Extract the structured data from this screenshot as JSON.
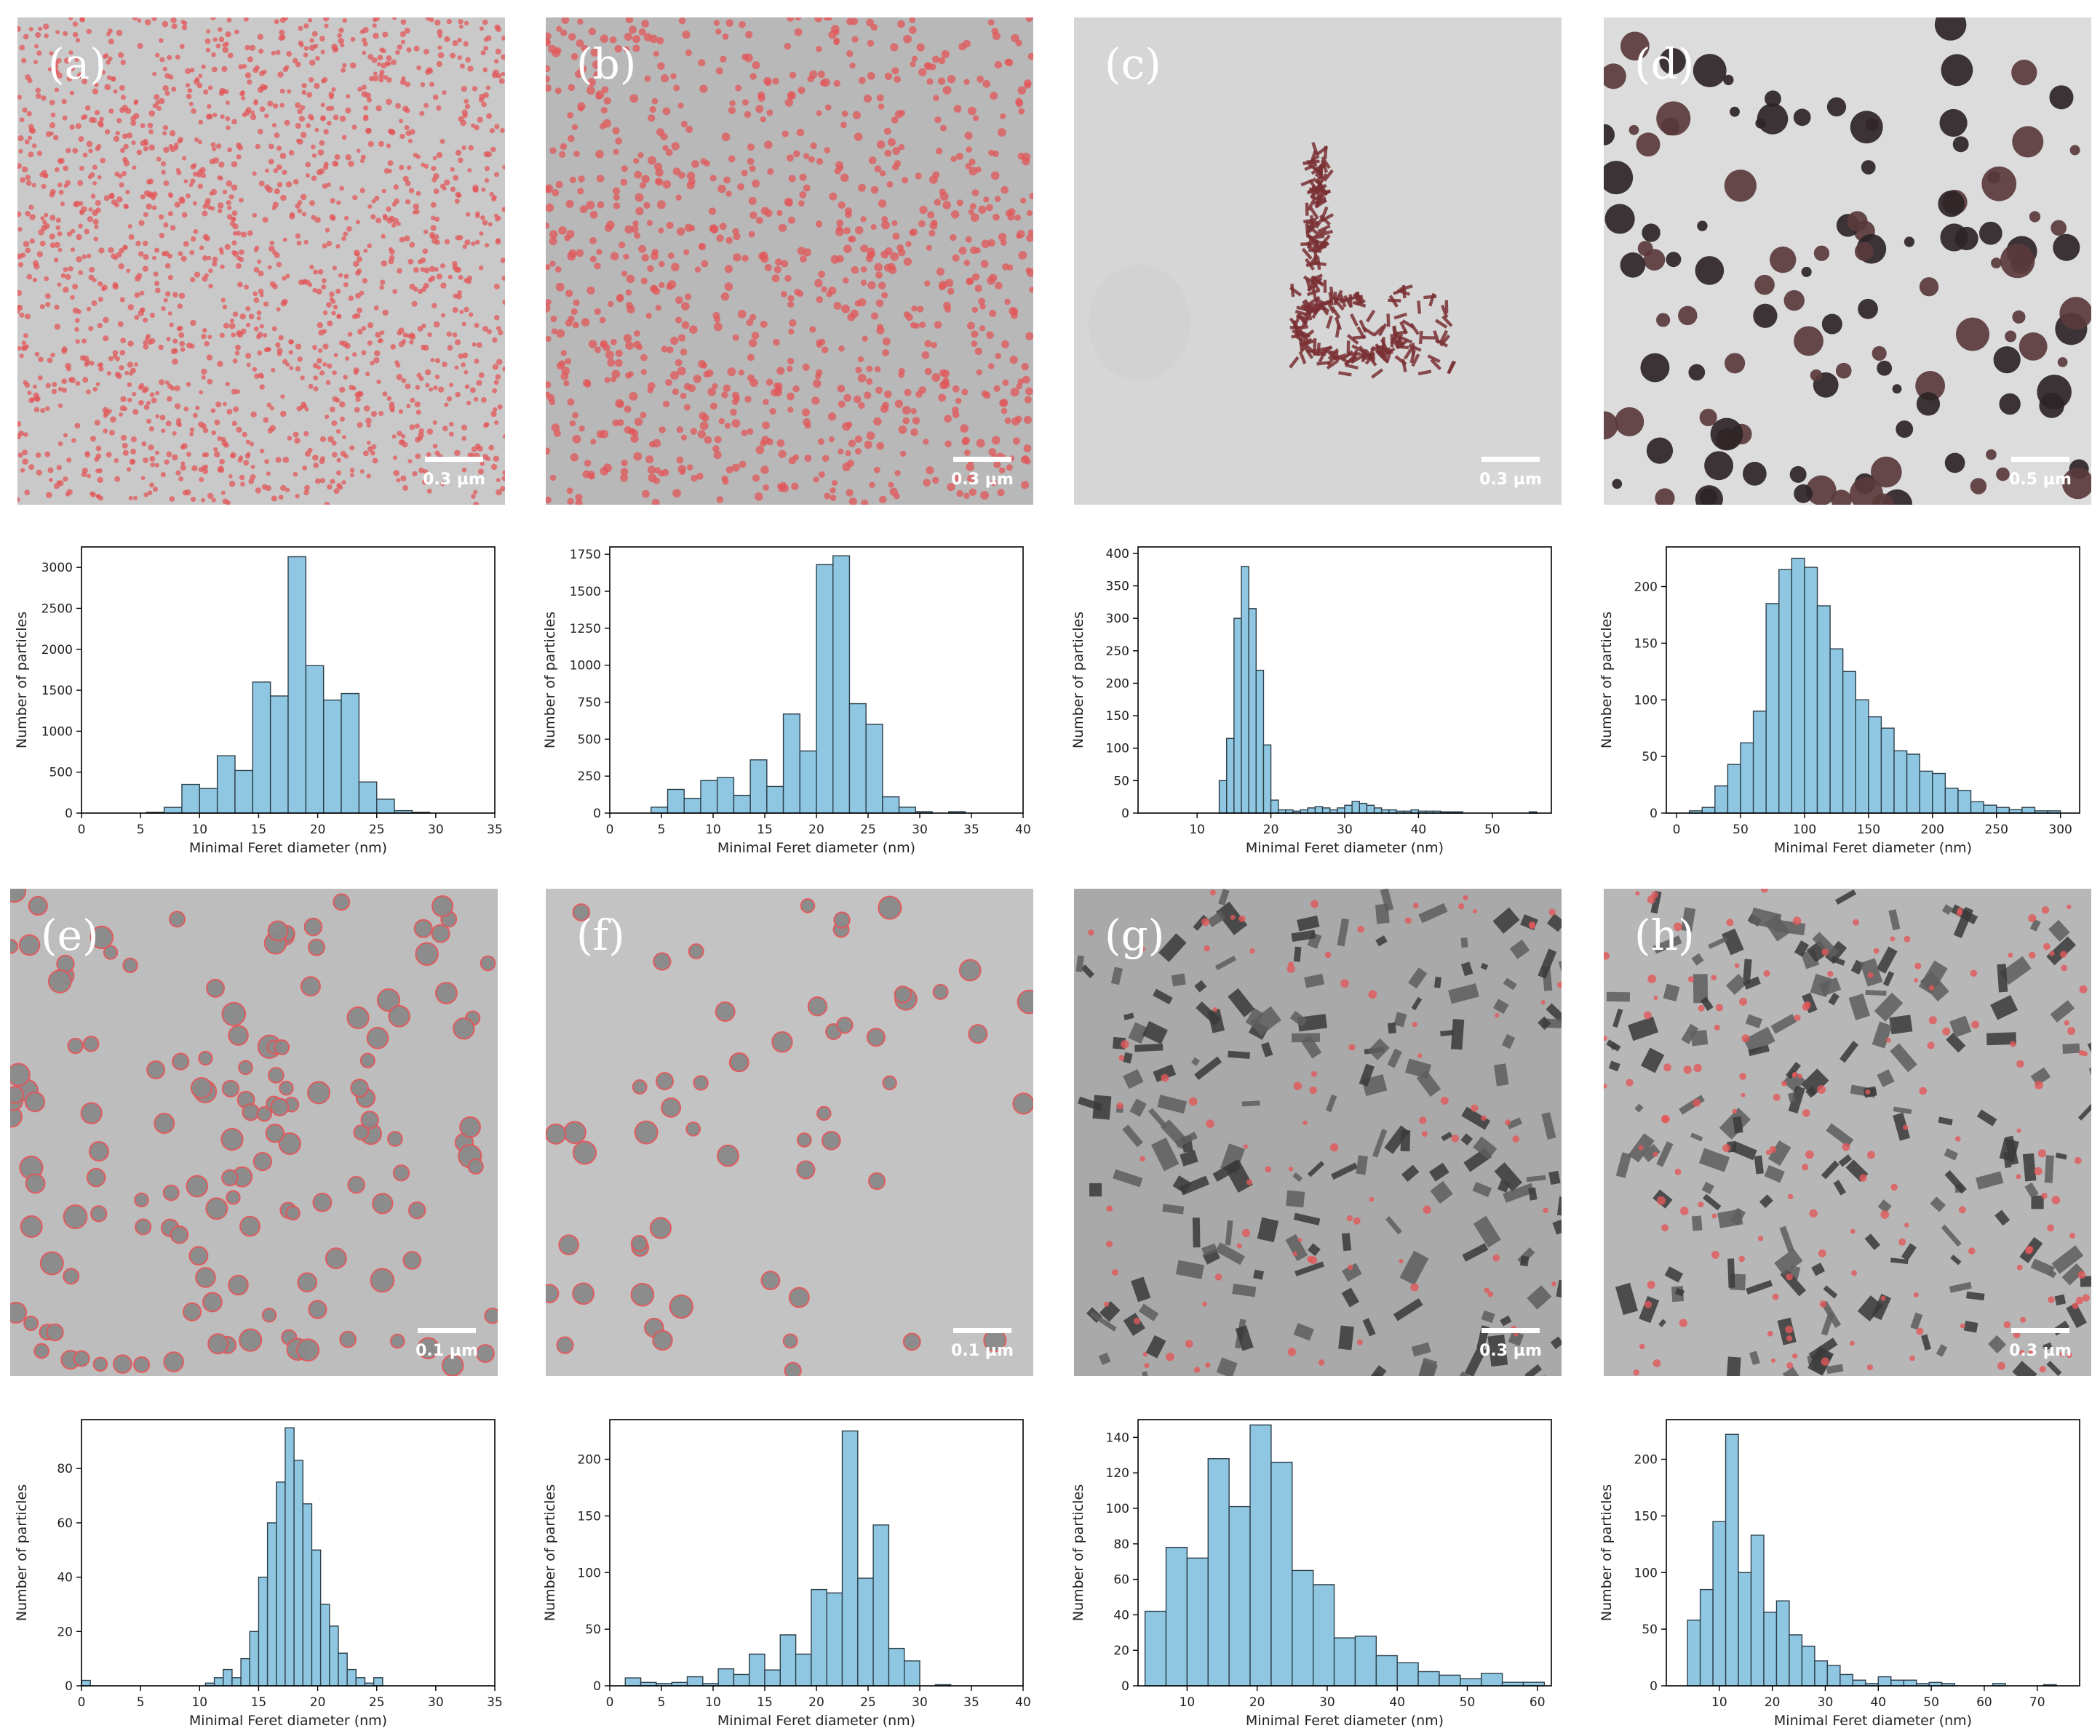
{
  "colors": {
    "bar_fill": "#8fc7e2",
    "bar_edge": "#2d3f4a",
    "overlay": "#e2575a"
  },
  "micrographs": [
    {
      "id": "a",
      "letter": "(a)",
      "scale_label": "0.3 µm",
      "bg": "#c9c9c9",
      "style": "dense-dots"
    },
    {
      "id": "b",
      "letter": "(b)",
      "scale_label": "0.3 µm",
      "bg": "#b8b8b8",
      "style": "dots"
    },
    {
      "id": "c",
      "letter": "(c)",
      "scale_label": "0.3 µm",
      "bg": "#d6d6d6",
      "style": "rods"
    },
    {
      "id": "d",
      "letter": "(d)",
      "scale_label": "0.5 µm",
      "bg": "#dcdcdc",
      "style": "dark-blobs"
    },
    {
      "id": "e",
      "letter": "(e)",
      "scale_label": "0.1 µm",
      "bg": "#bdbdbd",
      "style": "rings"
    },
    {
      "id": "f",
      "letter": "(f)",
      "scale_label": "0.1 µm",
      "bg": "#c3c3c3",
      "style": "rings-few"
    },
    {
      "id": "g",
      "letter": "(g)",
      "scale_label": "0.3 µm",
      "bg": "#a9a9a9",
      "style": "aggregates"
    },
    {
      "id": "h",
      "letter": "(h)",
      "scale_label": "0.3 µm",
      "bg": "#b7b7b7",
      "style": "aggregates-dots"
    }
  ],
  "chart_data": [
    {
      "panel": "a",
      "type": "bar",
      "xlabel": "Minimal Feret diameter (nm)",
      "ylabel": "Number of particles",
      "xlim": [
        0,
        35
      ],
      "xticks": [
        0,
        5,
        10,
        15,
        20,
        25,
        30,
        35
      ],
      "ylim": [
        0,
        3250
      ],
      "yticks": [
        0,
        500,
        1000,
        1500,
        2000,
        2500,
        3000
      ],
      "bin_start": 5.5,
      "bin_width": 1.5,
      "values": [
        10,
        70,
        350,
        300,
        700,
        520,
        1600,
        1430,
        3130,
        1800,
        1380,
        1460,
        380,
        170,
        30,
        10,
        0,
        0
      ]
    },
    {
      "panel": "b",
      "type": "bar",
      "xlabel": "Minimal Feret diameter (nm)",
      "ylabel": "Number of particles",
      "xlim": [
        0,
        40
      ],
      "xticks": [
        0,
        5,
        10,
        15,
        20,
        25,
        30,
        35,
        40
      ],
      "ylim": [
        0,
        1800
      ],
      "yticks": [
        0,
        250,
        500,
        750,
        1000,
        1250,
        1500,
        1750
      ],
      "bin_start": 4,
      "bin_width": 1.6,
      "values": [
        40,
        160,
        100,
        220,
        240,
        120,
        360,
        180,
        670,
        420,
        1680,
        1740,
        740,
        600,
        110,
        40,
        10,
        0,
        10
      ]
    },
    {
      "panel": "c",
      "type": "bar",
      "xlabel": "Minimal Feret diameter (nm)",
      "ylabel": "Number of particles",
      "xlim": [
        2,
        58
      ],
      "xticks": [
        10,
        20,
        30,
        40,
        50
      ],
      "ylim": [
        0,
        410
      ],
      "yticks": [
        0,
        50,
        100,
        150,
        200,
        250,
        300,
        350,
        400
      ],
      "bin_start": 5,
      "bin_width": 1,
      "values": [
        0,
        0,
        0,
        0,
        0,
        0,
        0,
        0,
        50,
        115,
        300,
        380,
        315,
        220,
        105,
        20,
        5,
        5,
        3,
        5,
        8,
        10,
        8,
        5,
        8,
        12,
        18,
        15,
        12,
        8,
        5,
        5,
        3,
        3,
        5,
        3,
        3,
        3,
        2,
        2,
        2,
        0,
        0,
        0,
        0,
        0,
        0,
        0,
        0,
        0,
        2
      ]
    },
    {
      "panel": "d",
      "type": "bar",
      "xlabel": "Minimal Feret diameter (nm)",
      "ylabel": "Number of particles",
      "xlim": [
        -8,
        315
      ],
      "xticks": [
        0,
        50,
        100,
        150,
        200,
        250,
        300
      ],
      "ylim": [
        0,
        235
      ],
      "yticks": [
        0,
        50,
        100,
        150,
        200
      ],
      "bin_start": 10,
      "bin_width": 10,
      "values": [
        2,
        5,
        24,
        43,
        62,
        90,
        185,
        215,
        225,
        217,
        183,
        145,
        125,
        100,
        85,
        75,
        55,
        52,
        37,
        35,
        22,
        20,
        10,
        7,
        5,
        3,
        5,
        2,
        2
      ]
    },
    {
      "panel": "e",
      "type": "bar",
      "xlabel": "Minimal Feret diameter (nm)",
      "ylabel": "Number of particles",
      "xlim": [
        0,
        35
      ],
      "xticks": [
        0,
        5,
        10,
        15,
        20,
        25,
        30,
        35
      ],
      "ylim": [
        0,
        98
      ],
      "yticks": [
        0,
        20,
        40,
        60,
        80
      ],
      "bin_start": 0,
      "bin_width": 0.75,
      "values": [
        2,
        0,
        0,
        0,
        0,
        0,
        0,
        0,
        0,
        0,
        0,
        0,
        0,
        0,
        1,
        3,
        6,
        3,
        10,
        20,
        40,
        60,
        75,
        95,
        83,
        67,
        50,
        30,
        22,
        12,
        6,
        3,
        1,
        3
      ]
    },
    {
      "panel": "f",
      "type": "bar",
      "xlabel": "Minimal Feret diameter (nm)",
      "ylabel": "Number of particles",
      "xlim": [
        0,
        40
      ],
      "xticks": [
        0,
        5,
        10,
        15,
        20,
        25,
        30,
        35,
        40
      ],
      "ylim": [
        0,
        235
      ],
      "yticks": [
        0,
        50,
        100,
        150,
        200
      ],
      "bin_start": 1.5,
      "bin_width": 1.5,
      "values": [
        7,
        3,
        2,
        3,
        8,
        2,
        15,
        10,
        28,
        14,
        45,
        28,
        85,
        82,
        225,
        95,
        142,
        33,
        22,
        0,
        1
      ]
    },
    {
      "panel": "g",
      "type": "bar",
      "xlabel": "Minimal Feret diameter (nm)",
      "ylabel": "Number of particles",
      "xlim": [
        3,
        62
      ],
      "xticks": [
        10,
        20,
        30,
        40,
        50,
        60
      ],
      "ylim": [
        0,
        150
      ],
      "yticks": [
        0,
        20,
        40,
        60,
        80,
        100,
        120,
        140
      ],
      "bin_start": 4,
      "bin_width": 3,
      "values": [
        42,
        78,
        72,
        128,
        101,
        147,
        126,
        65,
        57,
        27,
        28,
        17,
        13,
        8,
        6,
        4,
        7,
        2,
        2
      ]
    },
    {
      "panel": "h",
      "type": "bar",
      "xlabel": "Minimal Feret diameter (nm)",
      "ylabel": "Number of particles",
      "xlim": [
        0,
        78
      ],
      "xticks": [
        10,
        20,
        30,
        40,
        50,
        60,
        70
      ],
      "ylim": [
        0,
        235
      ],
      "yticks": [
        0,
        50,
        100,
        150,
        200
      ],
      "bin_start": 4,
      "bin_width": 2.4,
      "values": [
        58,
        85,
        145,
        222,
        100,
        133,
        65,
        75,
        45,
        35,
        22,
        18,
        10,
        5,
        2,
        8,
        5,
        5,
        2,
        3,
        2,
        0,
        0,
        0,
        2,
        0,
        0,
        0,
        1
      ]
    }
  ]
}
